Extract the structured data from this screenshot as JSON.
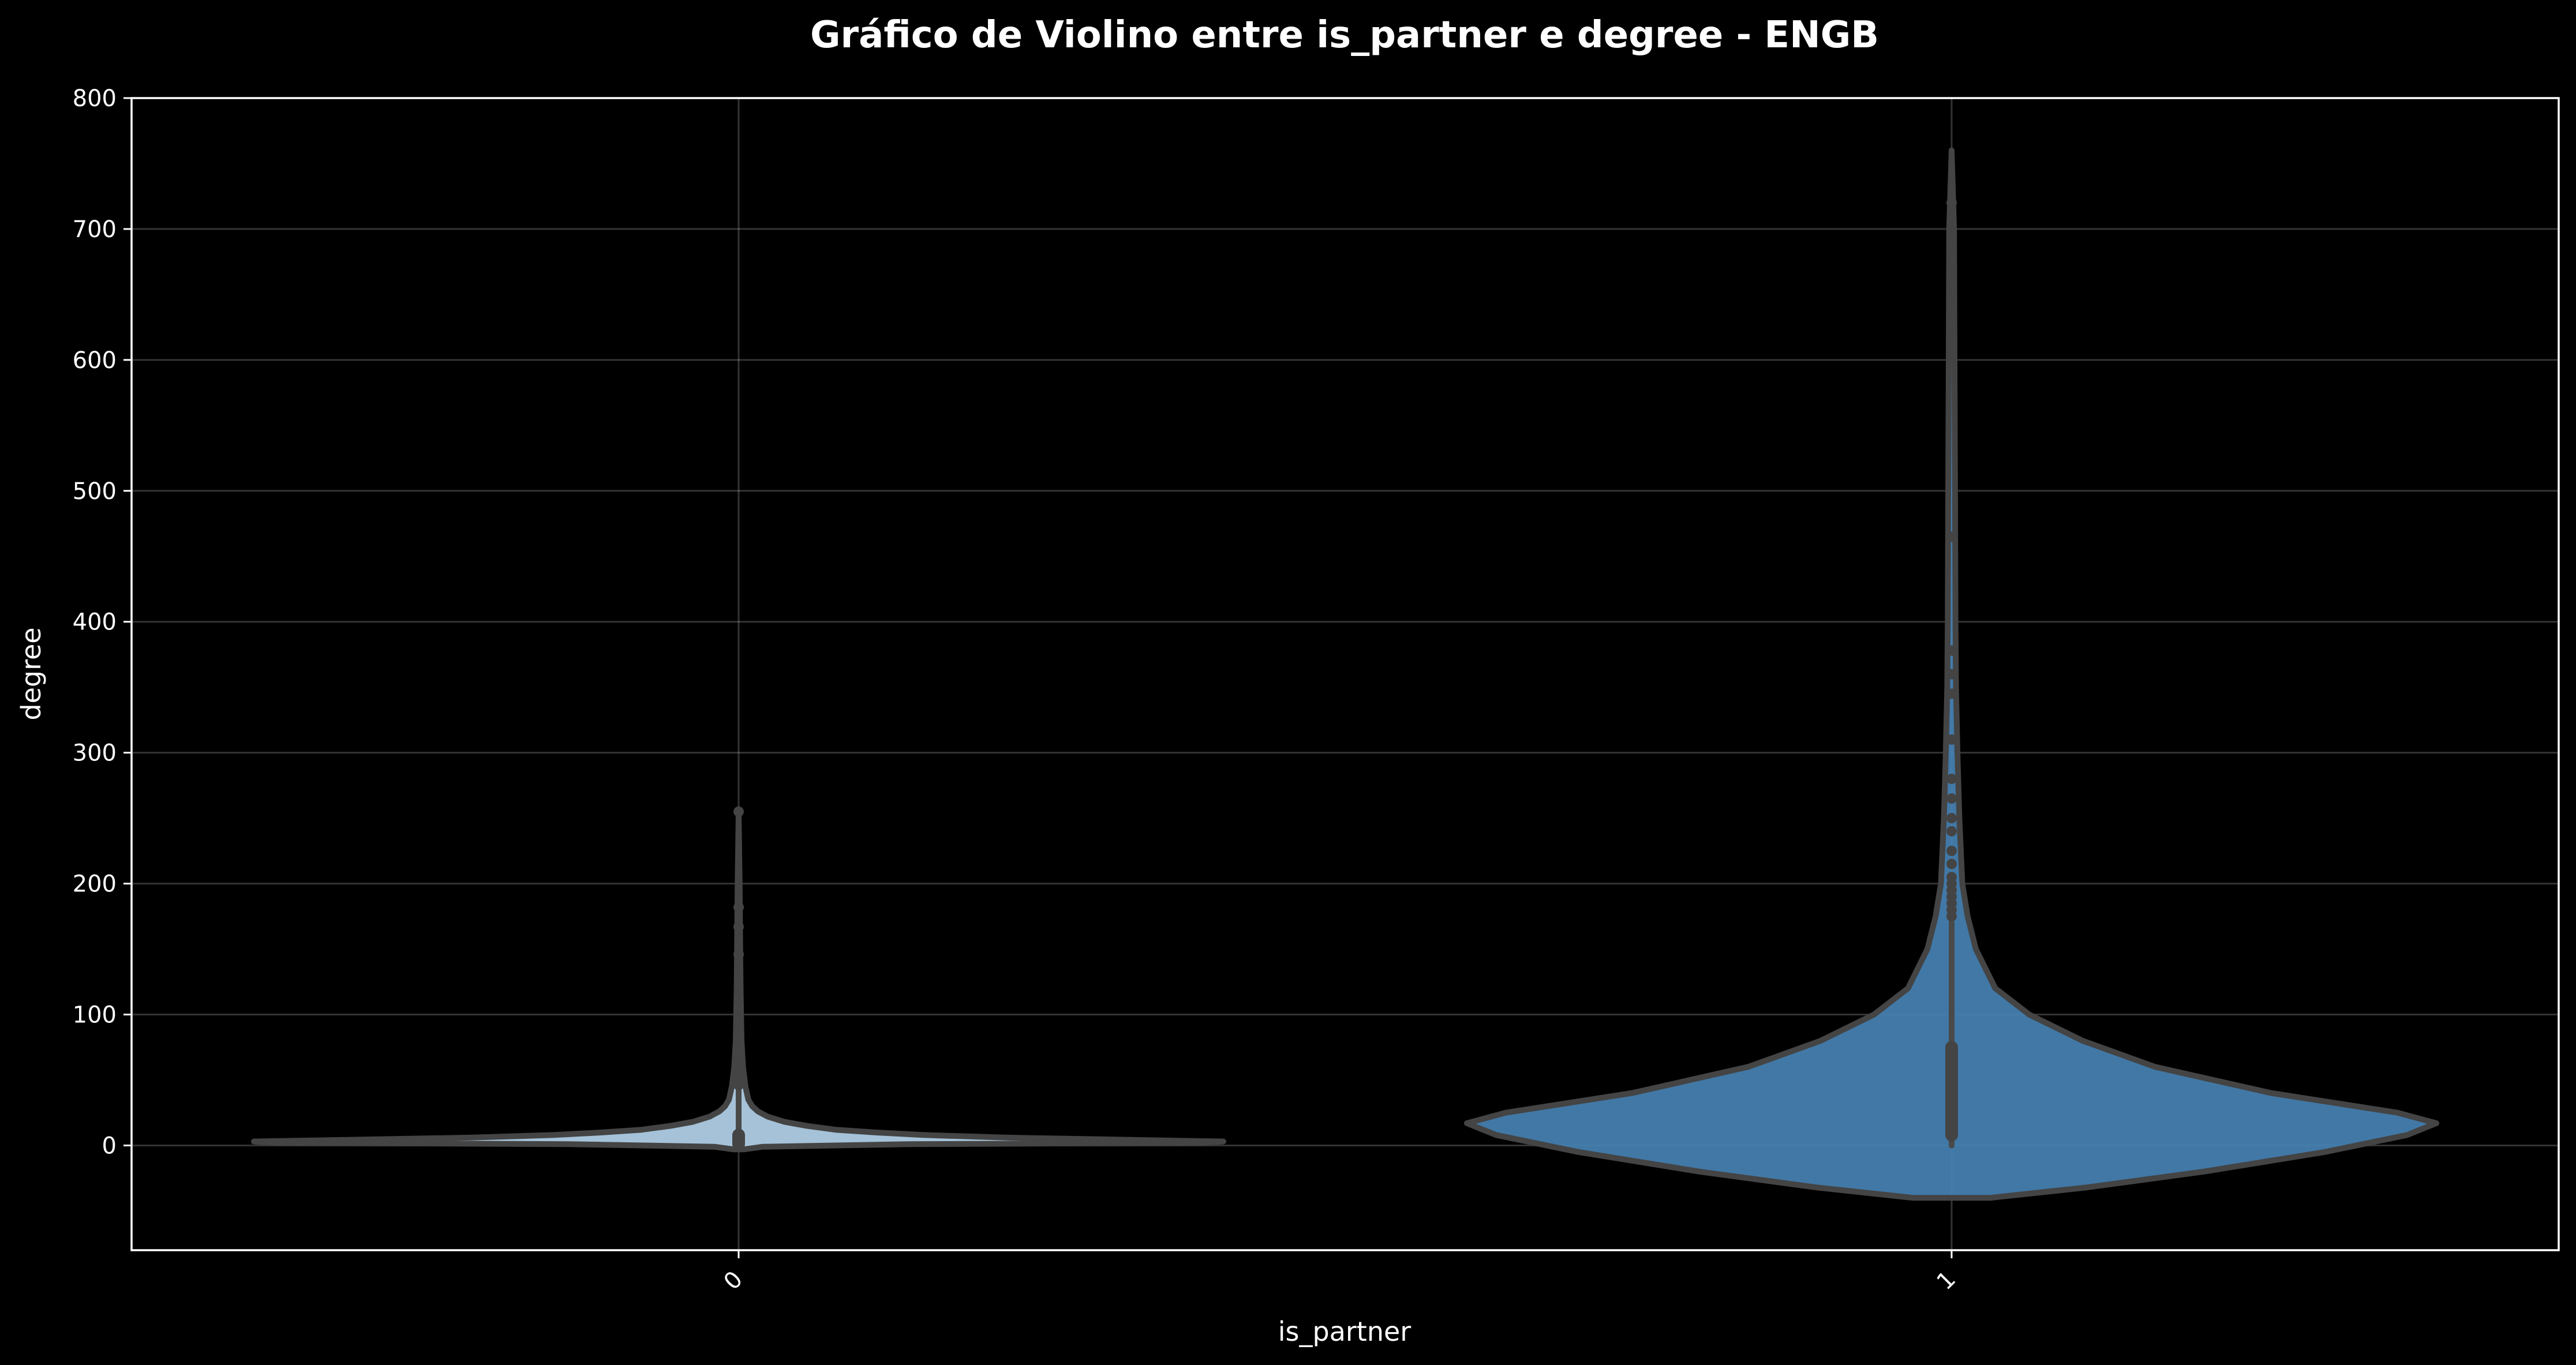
{
  "colors": {
    "background": "#000000",
    "text": "#ffffff",
    "violin_0": "#b3d3ea",
    "violin_1": "#4682b4",
    "outline": "#444444"
  },
  "chart_data": {
    "type": "violin",
    "title": "Gráfico de Violino entre is_partner e degree - ENGB",
    "xlabel": "is_partner",
    "ylabel": "degree",
    "categories": [
      "0",
      "1"
    ],
    "ylim": [
      -80,
      800
    ],
    "yticks": [
      0,
      100,
      200,
      300,
      400,
      500,
      600,
      700,
      800
    ],
    "grid": true,
    "series": [
      {
        "category": "0",
        "color": "#b3d3ea",
        "kde_y": [
          -3,
          -1,
          1,
          2,
          3,
          4,
          6,
          8,
          10,
          12,
          15,
          18,
          22,
          26,
          30,
          35,
          45,
          60,
          80,
          120,
          160,
          200,
          255
        ],
        "kde_density": [
          0.01,
          0.05,
          0.35,
          0.95,
          1.0,
          0.85,
          0.55,
          0.38,
          0.28,
          0.2,
          0.14,
          0.095,
          0.06,
          0.04,
          0.028,
          0.02,
          0.014,
          0.009,
          0.006,
          0.004,
          0.003,
          0.002,
          0.0
        ],
        "whisker_low": 0,
        "whisker_high": 45,
        "q1": 1,
        "q3": 8,
        "outliers": [
          46,
          48,
          50,
          52,
          55,
          58,
          60,
          63,
          65,
          68,
          70,
          73,
          75,
          78,
          82,
          86,
          90,
          95,
          100,
          103,
          146,
          167,
          182,
          255
        ]
      },
      {
        "category": "1",
        "color": "#4682b4",
        "kde_y": [
          -40,
          -32,
          -20,
          -5,
          8,
          17,
          25,
          40,
          60,
          80,
          100,
          120,
          150,
          175,
          200,
          250,
          300,
          350,
          400,
          500,
          600,
          700,
          760
        ],
        "kde_density": [
          0.08,
          0.28,
          0.52,
          0.77,
          0.94,
          1.0,
          0.92,
          0.66,
          0.42,
          0.27,
          0.16,
          0.09,
          0.05,
          0.033,
          0.022,
          0.016,
          0.012,
          0.009,
          0.008,
          0.007,
          0.006,
          0.005,
          0.0
        ],
        "whisker_low": 0,
        "whisker_high": 170,
        "q1": 8,
        "q3": 75,
        "outliers": [
          175,
          180,
          185,
          190,
          195,
          200,
          205,
          215,
          225,
          240,
          250,
          265,
          280,
          310,
          345,
          360,
          378,
          465,
          690,
          720
        ]
      }
    ]
  }
}
